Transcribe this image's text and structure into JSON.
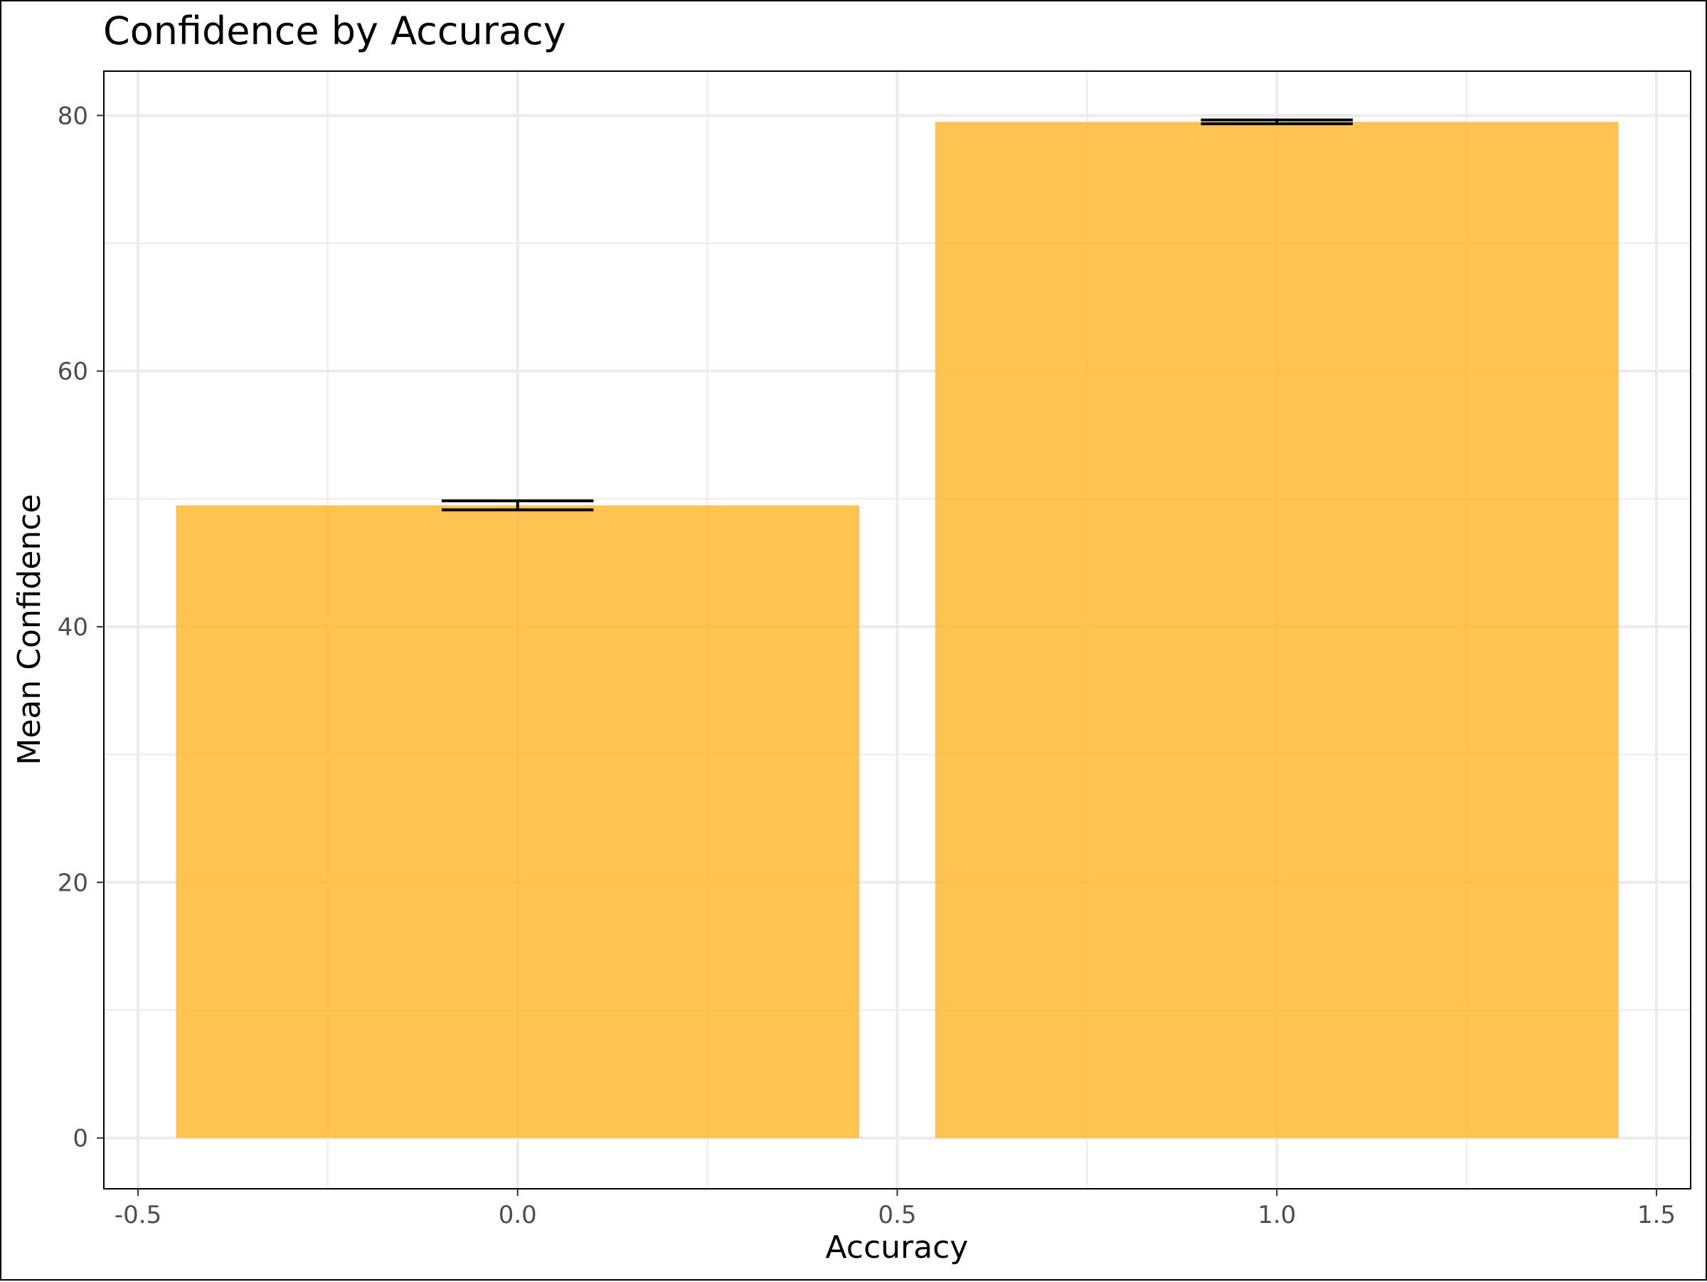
{
  "chart_data": {
    "type": "bar",
    "title": "Confidence by Accuracy",
    "xlabel": "Accuracy",
    "ylabel": "Mean Confidence",
    "x": [
      0,
      1
    ],
    "values": [
      49.5,
      79.5
    ],
    "errors": [
      0.35,
      0.15
    ],
    "bar_width": 0.9,
    "xlim": [
      -0.545,
      1.545
    ],
    "ylim": [
      -3.9747,
      83.4688
    ],
    "x_ticks": [
      -0.5,
      0.0,
      0.5,
      1.0,
      1.5
    ],
    "x_tick_labels": [
      "-0.5",
      "0.0",
      "0.5",
      "1.0",
      "1.5"
    ],
    "x_minor_ticks": [
      -0.25,
      0.25,
      0.75,
      1.25
    ],
    "y_ticks": [
      0,
      20,
      40,
      60,
      80
    ],
    "y_tick_labels": [
      "0",
      "20",
      "40",
      "60",
      "80"
    ],
    "y_minor_ticks": [
      10,
      30,
      50,
      70
    ],
    "grid": true,
    "legend": "none",
    "colors": {
      "bar": "#ffb833",
      "bar_opacity": 0.85,
      "grid": "#ebebeb",
      "error_bar": "#000000",
      "panel_border": "#000000"
    }
  }
}
